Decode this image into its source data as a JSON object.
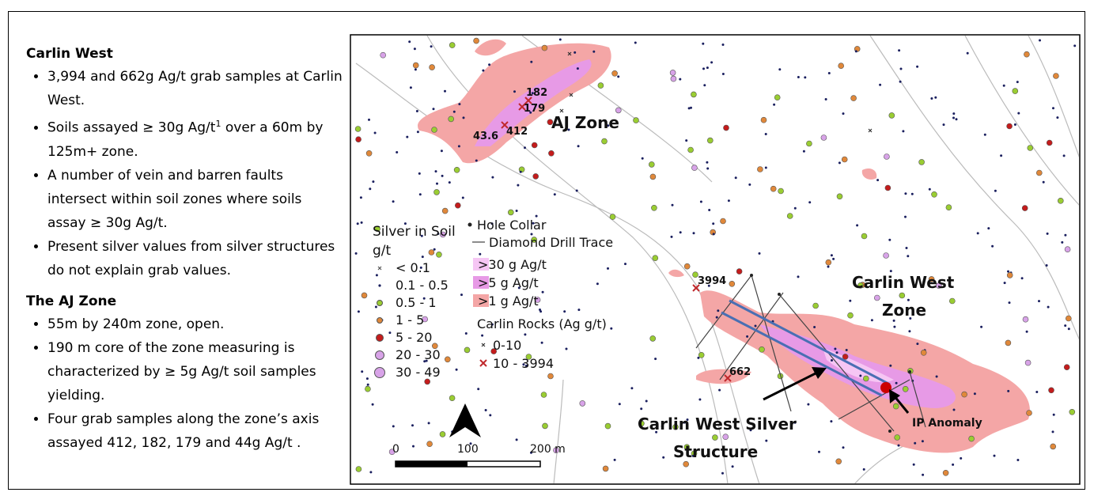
{
  "panel": {
    "sections": [
      {
        "heading": "Carlin West",
        "bullets": [
          "3,994 and 662g Ag/t grab samples at Carlin West.",
          {
            "text": "Soils assayed ≥ 30g Ag/t",
            "sup": "1",
            "rest": " over a 60m by 125m+ zone."
          },
          "A number of vein and barren faults intersect within soil zones where soils assay ≥ 30g Ag/t.",
          "Present silver values from silver structures do not explain grab values."
        ]
      },
      {
        "heading": "The AJ Zone",
        "bullets": [
          "55m by 240m zone, open.",
          "190 m core of the zone measuring is characterized by ≥ 5g Ag/t soil samples yielding.",
          "Four grab samples along the zone’s axis assayed 412, 182, 179 and 44g Ag/t ."
        ]
      }
    ]
  },
  "map": {
    "zones": {
      "aj": "AJ Zone",
      "cw": [
        "Carlin West",
        "Zone"
      ],
      "structure": [
        "Carlin West Silver",
        "Structure"
      ],
      "ip": "IP Anomaly"
    },
    "samples": [
      "182",
      "179",
      "43.6",
      "412",
      "3994",
      "662"
    ],
    "legend": {
      "soil_title": [
        "Silver in Soil",
        "g/t"
      ],
      "soil_classes": [
        "< 0.1",
        "0.1 - 0.5",
        "0.5 - 1",
        "1 - 5",
        "5 - 20",
        "20 - 30",
        "30 - 49"
      ],
      "hole_collar": "Hole Collar",
      "drill_trace": "Diamond Drill Trace",
      "zones": [
        ">30 g Ag/t",
        ">5 g Ag/t",
        ">1 g Ag/t"
      ],
      "rocks_title": "Carlin Rocks (Ag g/t)",
      "rocks": [
        "0-10",
        "10 - 3994"
      ]
    },
    "scale": [
      "0",
      "100",
      "200 m"
    ]
  }
}
